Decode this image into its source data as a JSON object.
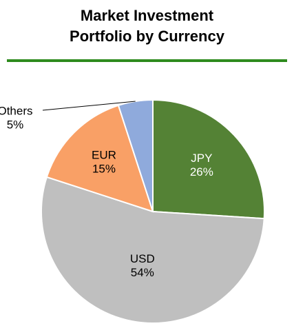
{
  "chart_data": {
    "type": "pie",
    "title": "Market Investment Portfolio by Currency",
    "categories": [
      "JPY",
      "USD",
      "EUR",
      "Others"
    ],
    "values": [
      26,
      54,
      15,
      5
    ],
    "value_labels": [
      "26%",
      "54%",
      "15%",
      "5%"
    ],
    "colors": [
      "#548235",
      "#bfbfbf",
      "#f9a066",
      "#8faadc"
    ]
  }
}
